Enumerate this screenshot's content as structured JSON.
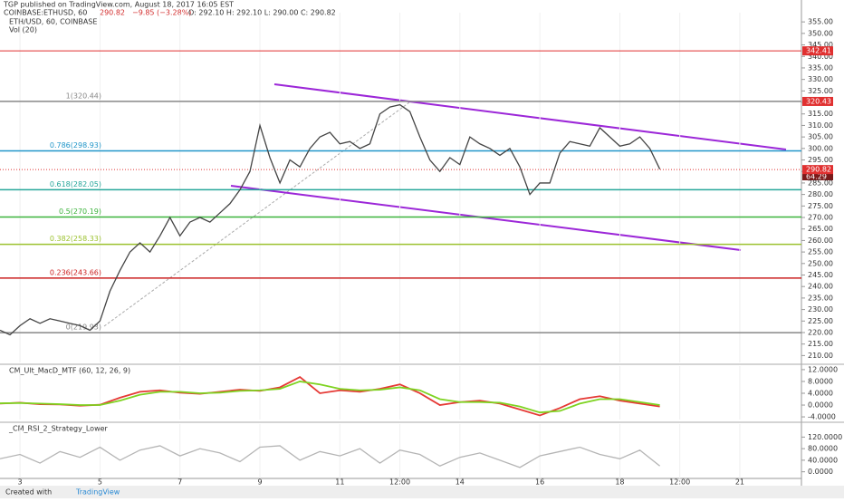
{
  "header": {
    "publisher": "TGP published on TradingView.com, August 18, 2017 16:05 EST",
    "symbol": "COINBASE:ETHUSD, 60",
    "last": "290.82",
    "change": "−9.85 (−3.28%)",
    "ohlc": "O: 292.10 H: 292.10 L: 290.00 C: 290.82",
    "volume_tag": "64.29"
  },
  "footer": {
    "created": "Created with",
    "brand": "TradingView"
  },
  "chart_data": [
    {
      "type": "line",
      "title": "ETH/USD, 60, COINBASE",
      "subtitle": "Vol (20)",
      "color": "#444444",
      "x": [
        -12,
        -6,
        0,
        6,
        12,
        18,
        24,
        30,
        36,
        42,
        48,
        54,
        60,
        66,
        72,
        78,
        84,
        90,
        96,
        102,
        108,
        114,
        120,
        126,
        132,
        138,
        144,
        150,
        156,
        162,
        168,
        174,
        180,
        186,
        192,
        198,
        204,
        210,
        216,
        222,
        228,
        234,
        240,
        246,
        252,
        258,
        264,
        270,
        276,
        282,
        288,
        294,
        300,
        306,
        312,
        318,
        324,
        330,
        336,
        342,
        348,
        354,
        360,
        366,
        372,
        378,
        384
      ],
      "values": [
        221,
        219,
        223,
        226,
        224,
        226,
        225,
        224,
        223,
        221,
        225,
        238,
        247,
        255,
        259,
        255,
        262,
        270,
        262,
        268,
        270,
        268,
        272,
        276,
        282,
        290,
        310,
        296,
        285,
        295,
        292,
        300,
        305,
        307,
        302,
        303,
        300,
        302,
        315,
        318,
        319,
        316,
        305,
        295,
        290,
        296,
        293,
        305,
        302,
        300,
        297,
        300,
        292,
        280,
        285,
        285,
        298,
        303,
        302,
        301,
        309,
        305,
        301,
        302,
        305,
        300,
        291
      ],
      "xlim": [
        -12,
        469
      ],
      "xticks": [
        {
          "value": 0,
          "label": "3"
        },
        {
          "value": 48,
          "label": "5"
        },
        {
          "value": 96,
          "label": "7"
        },
        {
          "value": 144,
          "label": "9"
        },
        {
          "value": 192,
          "label": "11"
        },
        {
          "value": 228,
          "label": "12:00"
        },
        {
          "value": 264,
          "label": "14"
        },
        {
          "value": 312,
          "label": "16"
        },
        {
          "value": 360,
          "label": "18"
        },
        {
          "value": 396,
          "label": "12:00"
        },
        {
          "value": 432,
          "label": "21"
        }
      ],
      "grid": true,
      "ylim": [
        207,
        359
      ],
      "yticks": [
        {
          "value": 210,
          "label": "210.00"
        },
        {
          "value": 215,
          "label": "215.00"
        },
        {
          "value": 220,
          "label": "220.00"
        },
        {
          "value": 225,
          "label": "225.00"
        },
        {
          "value": 230,
          "label": "230.00"
        },
        {
          "value": 235,
          "label": "235.00"
        },
        {
          "value": 240,
          "label": "240.00"
        },
        {
          "value": 245,
          "label": "245.00"
        },
        {
          "value": 250,
          "label": "250.00"
        },
        {
          "value": 255,
          "label": "255.00"
        },
        {
          "value": 260,
          "label": "260.00"
        },
        {
          "value": 265,
          "label": "265.00"
        },
        {
          "value": 270,
          "label": "270.00"
        },
        {
          "value": 275,
          "label": "275.00"
        },
        {
          "value": 280,
          "label": "280.00"
        },
        {
          "value": 285,
          "label": "285.00"
        },
        {
          "value": 290,
          "label": "290.00"
        },
        {
          "value": 295,
          "label": "295.00"
        },
        {
          "value": 300,
          "label": "300.00"
        },
        {
          "value": 305,
          "label": "305.00"
        },
        {
          "value": 310,
          "label": "310.00"
        },
        {
          "value": 315,
          "label": "315.00"
        },
        {
          "value": 320,
          "label": "320.00"
        },
        {
          "value": 325,
          "label": "325.00"
        },
        {
          "value": 330,
          "label": "330.00"
        },
        {
          "value": 335,
          "label": "335.00"
        },
        {
          "value": 340,
          "label": "340.00"
        },
        {
          "value": 345,
          "label": "345.00"
        },
        {
          "value": 350,
          "label": "350.00"
        },
        {
          "value": 355,
          "label": "355.00"
        }
      ],
      "levels": [
        {
          "label": "1(320.44)",
          "value": 320.44,
          "color": "#888888"
        },
        {
          "label": "0.786(298.93)",
          "value": 298.93,
          "color": "#2196c9"
        },
        {
          "label": "0.618(282.05)",
          "value": 282.05,
          "color": "#26a69a"
        },
        {
          "label": "0.5(270.19)",
          "value": 270.19,
          "color": "#3cb33c"
        },
        {
          "label": "0.382(258.33)",
          "value": 258.33,
          "color": "#9cc22f"
        },
        {
          "label": "0.236(243.66)",
          "value": 243.66,
          "color": "#cc2222"
        },
        {
          "label": "0(219.93)",
          "value": 219.93,
          "color": "#888888"
        }
      ],
      "price_tags": [
        {
          "value": 342.41,
          "color": "#e03030",
          "line": "solid"
        },
        {
          "value": 320.43,
          "color": "#e03030"
        },
        {
          "value": 290.82,
          "color": "#e03030",
          "line": "dotted"
        }
      ]
    },
    {
      "type": "line",
      "title": "CM_Ult_MacD_MTF (60, 12, 26, 9)",
      "x": [
        -12,
        0,
        12,
        24,
        36,
        48,
        60,
        72,
        84,
        96,
        108,
        120,
        132,
        144,
        156,
        168,
        180,
        192,
        204,
        216,
        228,
        240,
        252,
        264,
        276,
        288,
        300,
        312,
        324,
        336,
        348,
        360,
        372,
        384
      ],
      "series": [
        {
          "color": "#e53935",
          "values": [
            0.5,
            0.8,
            0.3,
            0.2,
            -0.2,
            0.1,
            2.5,
            4.5,
            5,
            4.2,
            3.8,
            4.5,
            5.2,
            4.8,
            6,
            9.5,
            4,
            5,
            4.5,
            5.5,
            7,
            4,
            0,
            1,
            1.5,
            0.5,
            -1.5,
            -3.5,
            -1,
            2,
            3,
            1.5,
            0.5,
            -0.5
          ]
        },
        {
          "color": "#7ed321",
          "values": [
            0.6,
            0.7,
            0.5,
            0.3,
            0,
            0,
            1.5,
            3.5,
            4.5,
            4.5,
            4,
            4.2,
            4.8,
            5,
            5.5,
            8,
            7,
            5.5,
            5,
            5.2,
            6,
            5,
            2,
            1,
            1,
            0.8,
            -0.5,
            -2.5,
            -2,
            0.5,
            2,
            2,
            1,
            0
          ]
        }
      ],
      "xlim": [
        -12,
        469
      ],
      "ylim": [
        -4.9,
        13.2
      ],
      "yticks": [
        {
          "value": -4,
          "label": "-4.0000"
        },
        {
          "value": 0,
          "label": "0.0000"
        },
        {
          "value": 4,
          "label": "4.0000"
        },
        {
          "value": 8,
          "label": "8.0000"
        },
        {
          "value": 12,
          "label": "12.0000"
        }
      ]
    },
    {
      "type": "line",
      "title": "_CM_RSI_2_Strategy_Lower",
      "color": "#b5b5b5",
      "x": [
        -12,
        0,
        12,
        24,
        36,
        48,
        60,
        72,
        84,
        96,
        108,
        120,
        132,
        144,
        156,
        168,
        180,
        192,
        204,
        216,
        228,
        240,
        252,
        264,
        276,
        288,
        300,
        312,
        324,
        336,
        348,
        360,
        372,
        384
      ],
      "values": [
        45,
        60,
        30,
        70,
        50,
        85,
        40,
        75,
        90,
        55,
        80,
        65,
        35,
        85,
        90,
        40,
        70,
        55,
        80,
        30,
        75,
        60,
        20,
        50,
        65,
        40,
        15,
        55,
        70,
        85,
        60,
        45,
        75,
        20
      ],
      "xlim": [
        -12,
        469
      ],
      "ylim": [
        -23,
        165
      ],
      "yticks": [
        {
          "value": 0,
          "label": "0.0000"
        },
        {
          "value": 40,
          "label": "40.0000"
        },
        {
          "value": 80,
          "label": "80.0000"
        },
        {
          "value": 120,
          "label": "120.0000"
        }
      ]
    }
  ]
}
